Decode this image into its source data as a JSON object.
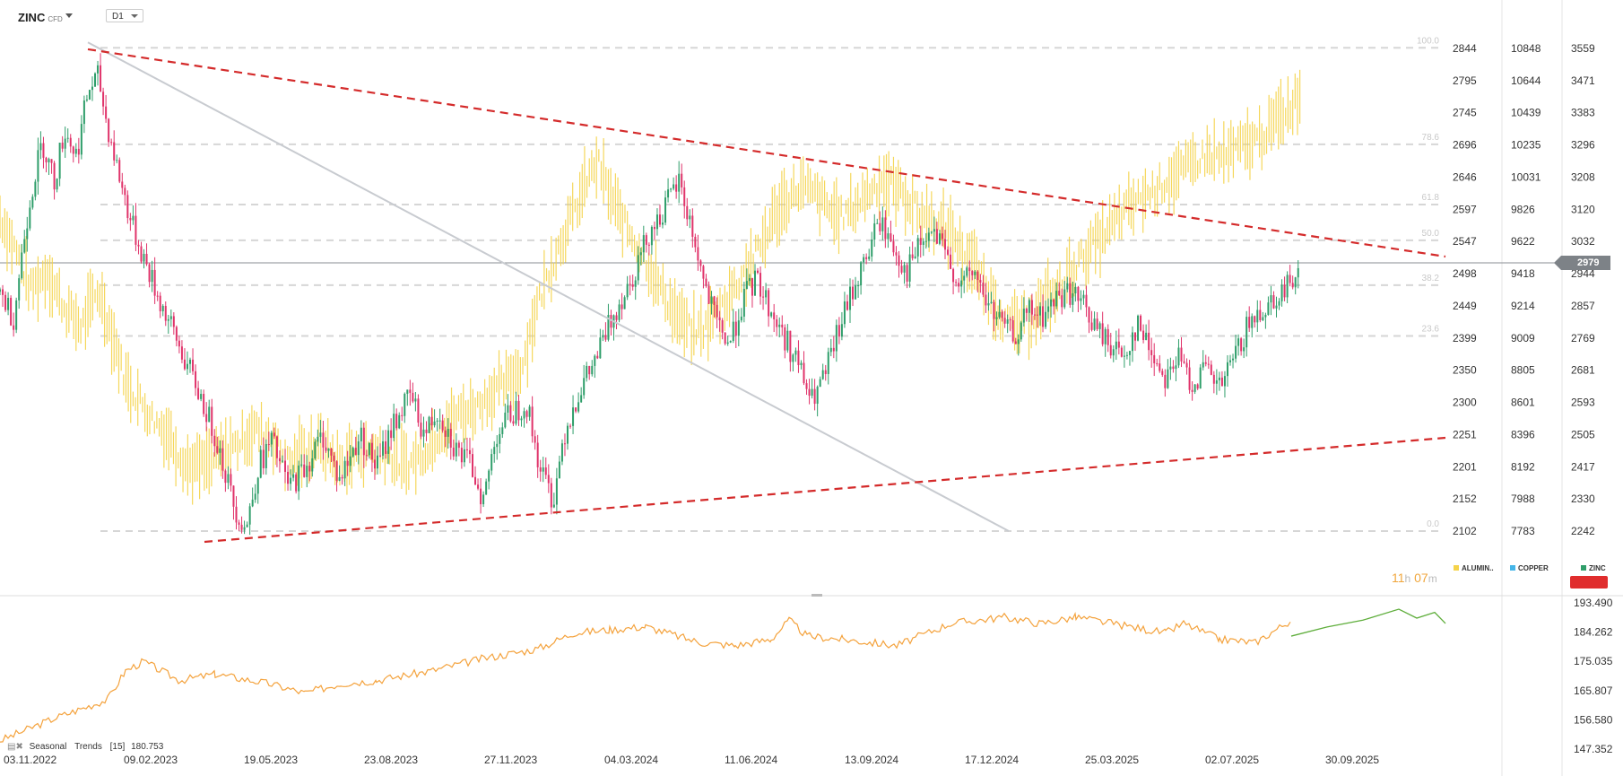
{
  "header": {
    "symbol": "ZINC",
    "symbol_type": "CFD",
    "timeframe": "D1"
  },
  "current_price": "2979",
  "countdown": {
    "hours": "11",
    "h_unit": "h",
    "minutes": "07",
    "m_unit": "m"
  },
  "legend": [
    {
      "name": "ALUMIN..",
      "color": "#f5d34a"
    },
    {
      "name": "COPPER",
      "color": "#45b5e8"
    },
    {
      "name": "ZINC",
      "color": "#2f9e6a"
    }
  ],
  "indicator": {
    "name": "Seasonal",
    "subname": "Trends",
    "param": "[15]",
    "value": "180.753"
  },
  "colors": {
    "up": "#2f9e6a",
    "down": "#e0336a",
    "aluminium": "#f5d34a",
    "trendline": "#d42b2b",
    "grey_line": "#c8cbd0",
    "fib": "#d6d6d6",
    "seasonal_past": "#f4a23c",
    "seasonal_future": "#5fae3c"
  },
  "chart_data": [
    {
      "type": "candlestick",
      "x_labels": [
        "03.11.2022",
        "09.02.2023",
        "19.05.2023",
        "23.08.2023",
        "27.11.2023",
        "04.03.2024",
        "11.06.2024",
        "13.09.2024",
        "17.12.2024",
        "25.03.2025",
        "02.07.2025",
        "30.09.2025"
      ],
      "axis_zinc": [
        2844,
        2795,
        2745,
        2696,
        2646,
        2597,
        2547,
        2498,
        2449,
        2399,
        2350,
        2300,
        2251,
        2201,
        2152,
        2102
      ],
      "axis_copper": [
        10848,
        10644,
        10439,
        10235,
        10031,
        9826,
        9622,
        9418,
        9214,
        9009,
        8805,
        8601,
        8396,
        8192,
        7988,
        7783
      ],
      "axis_aluminium": [
        3559,
        3471,
        3383,
        3296,
        3208,
        3120,
        3032,
        2944,
        2857,
        2769,
        2681,
        2593,
        2505,
        2417,
        2330,
        2242
      ],
      "fib_levels": [
        "100.0",
        "78.6",
        "61.8",
        "50.0",
        "38.2",
        "23.6",
        "0.0"
      ],
      "zinc_path": [
        [
          0,
          2470
        ],
        [
          8,
          2430
        ],
        [
          14,
          2550
        ],
        [
          18,
          2620
        ],
        [
          25,
          2700
        ],
        [
          32,
          2640
        ],
        [
          38,
          2720
        ],
        [
          45,
          2680
        ],
        [
          52,
          2780
        ],
        [
          58,
          2800
        ],
        [
          62,
          2740
        ],
        [
          70,
          2650
        ],
        [
          78,
          2570
        ],
        [
          85,
          2520
        ],
        [
          92,
          2470
        ],
        [
          100,
          2420
        ],
        [
          108,
          2370
        ],
        [
          118,
          2310
        ],
        [
          128,
          2240
        ],
        [
          138,
          2140
        ],
        [
          145,
          2105
        ],
        [
          152,
          2200
        ],
        [
          160,
          2240
        ],
        [
          170,
          2170
        ],
        [
          180,
          2200
        ],
        [
          190,
          2250
        ],
        [
          200,
          2180
        ],
        [
          212,
          2250
        ],
        [
          222,
          2200
        ],
        [
          232,
          2270
        ],
        [
          242,
          2310
        ],
        [
          250,
          2250
        ],
        [
          258,
          2290
        ],
        [
          268,
          2230
        ],
        [
          278,
          2200
        ],
        [
          285,
          2150
        ],
        [
          292,
          2250
        ],
        [
          300,
          2280
        ],
        [
          310,
          2300
        ],
        [
          318,
          2200
        ],
        [
          326,
          2150
        ],
        [
          332,
          2250
        ],
        [
          340,
          2310
        ],
        [
          350,
          2360
        ],
        [
          362,
          2440
        ],
        [
          372,
          2490
        ],
        [
          382,
          2560
        ],
        [
          392,
          2600
        ],
        [
          400,
          2640
        ],
        [
          408,
          2560
        ],
        [
          415,
          2480
        ],
        [
          422,
          2420
        ],
        [
          430,
          2390
        ],
        [
          438,
          2460
        ],
        [
          446,
          2490
        ],
        [
          454,
          2440
        ],
        [
          462,
          2400
        ],
        [
          470,
          2360
        ],
        [
          478,
          2300
        ],
        [
          486,
          2340
        ],
        [
          494,
          2410
        ],
        [
          502,
          2470
        ],
        [
          510,
          2520
        ],
        [
          518,
          2580
        ],
        [
          526,
          2540
        ],
        [
          534,
          2500
        ],
        [
          542,
          2540
        ],
        [
          550,
          2560
        ],
        [
          558,
          2520
        ],
        [
          566,
          2480
        ],
        [
          574,
          2500
        ],
        [
          582,
          2450
        ],
        [
          590,
          2420
        ],
        [
          598,
          2400
        ],
        [
          606,
          2440
        ],
        [
          614,
          2430
        ],
        [
          622,
          2460
        ],
        [
          630,
          2470
        ],
        [
          638,
          2450
        ],
        [
          646,
          2410
        ],
        [
          654,
          2390
        ],
        [
          662,
          2370
        ],
        [
          670,
          2420
        ],
        [
          678,
          2380
        ],
        [
          686,
          2340
        ],
        [
          694,
          2370
        ],
        [
          702,
          2330
        ],
        [
          710,
          2350
        ],
        [
          718,
          2320
        ],
        [
          726,
          2360
        ],
        [
          734,
          2410
        ],
        [
          742,
          2440
        ],
        [
          750,
          2460
        ],
        [
          758,
          2475
        ],
        [
          766,
          2520
        ]
      ],
      "aluminium_path": [
        [
          0,
          3100
        ],
        [
          10,
          3000
        ],
        [
          18,
          2900
        ],
        [
          28,
          2950
        ],
        [
          38,
          2850
        ],
        [
          48,
          2800
        ],
        [
          58,
          2900
        ],
        [
          66,
          2780
        ],
        [
          74,
          2650
        ],
        [
          82,
          2600
        ],
        [
          90,
          2550
        ],
        [
          100,
          2500
        ],
        [
          110,
          2420
        ],
        [
          120,
          2420
        ],
        [
          130,
          2450
        ],
        [
          140,
          2480
        ],
        [
          150,
          2520
        ],
        [
          160,
          2500
        ],
        [
          170,
          2430
        ],
        [
          180,
          2460
        ],
        [
          190,
          2480
        ],
        [
          200,
          2420
        ],
        [
          210,
          2450
        ],
        [
          220,
          2470
        ],
        [
          230,
          2440
        ],
        [
          240,
          2420
        ],
        [
          250,
          2460
        ],
        [
          260,
          2520
        ],
        [
          270,
          2560
        ],
        [
          280,
          2580
        ],
        [
          290,
          2620
        ],
        [
          300,
          2650
        ],
        [
          308,
          2700
        ],
        [
          316,
          2850
        ],
        [
          324,
          2960
        ],
        [
          332,
          3050
        ],
        [
          340,
          3130
        ],
        [
          346,
          3200
        ],
        [
          352,
          3250
        ],
        [
          360,
          3150
        ],
        [
          368,
          3080
        ],
        [
          376,
          3020
        ],
        [
          384,
          2950
        ],
        [
          392,
          2880
        ],
        [
          400,
          2820
        ],
        [
          408,
          2780
        ],
        [
          416,
          2800
        ],
        [
          424,
          2850
        ],
        [
          432,
          2900
        ],
        [
          440,
          2960
        ],
        [
          448,
          3020
        ],
        [
          456,
          3100
        ],
        [
          464,
          3150
        ],
        [
          472,
          3180
        ],
        [
          480,
          3160
        ],
        [
          488,
          3120
        ],
        [
          496,
          3100
        ],
        [
          504,
          3130
        ],
        [
          512,
          3170
        ],
        [
          520,
          3200
        ],
        [
          528,
          3180
        ],
        [
          536,
          3140
        ],
        [
          544,
          3100
        ],
        [
          552,
          3080
        ],
        [
          560,
          3060
        ],
        [
          568,
          3000
        ],
        [
          576,
          2950
        ],
        [
          584,
          2880
        ],
        [
          592,
          2820
        ],
        [
          600,
          2800
        ],
        [
          608,
          2830
        ],
        [
          616,
          2870
        ],
        [
          624,
          2900
        ],
        [
          632,
          2960
        ],
        [
          640,
          3000
        ],
        [
          648,
          3040
        ],
        [
          656,
          3080
        ],
        [
          664,
          3120
        ],
        [
          672,
          3150
        ],
        [
          680,
          3170
        ],
        [
          688,
          3200
        ],
        [
          696,
          3220
        ],
        [
          704,
          3250
        ],
        [
          712,
          3270
        ],
        [
          720,
          3260
        ],
        [
          728,
          3280
        ],
        [
          736,
          3300
        ],
        [
          744,
          3320
        ],
        [
          752,
          3360
        ],
        [
          760,
          3400
        ],
        [
          766,
          3440
        ]
      ],
      "trendlines": {
        "upper_start": [
          98,
          2840
        ],
        "upper_end": [
          1395,
          2505
        ],
        "lower_start": [
          228,
          2102
        ],
        "lower_end": [
          1395,
          2255
        ],
        "grey_start": [
          98,
          2845
        ],
        "grey_end": [
          1125,
          2102
        ]
      }
    },
    {
      "type": "line",
      "name": "Seasonal Trends [15]",
      "y_ticks": [
        193.49,
        184.262,
        175.035,
        165.807,
        156.58,
        147.352
      ],
      "y_ticks_text": [
        "193.490",
        "184.262",
        "175.035",
        "165.807",
        "156.580",
        "147.352"
      ]
    }
  ]
}
